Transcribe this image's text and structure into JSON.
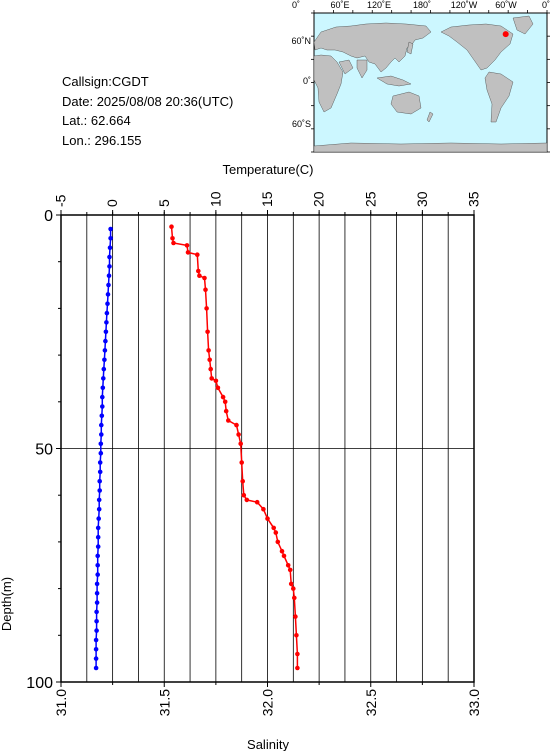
{
  "station": {
    "callsign_line": "Callsign:CGDT",
    "date_label": "Date:",
    "date_value": "2025/08/08 20:36(UTC)",
    "lat_label": "Lat.:",
    "lat_value": "62.664",
    "lon_label": "Lon.:",
    "lon_value": "296.155"
  },
  "map": {
    "lon_tick_labels": [
      "0˚",
      "60˚E",
      "120˚E",
      "180˚",
      "120˚W",
      "60˚W",
      "0˚"
    ],
    "lat_tick_labels": [
      "60˚N",
      "0˚",
      "60˚S"
    ],
    "marker": {
      "lat": 62.664,
      "lon": 296.155
    },
    "colors": {
      "ocean": "#ccf7ff",
      "land": "#c0c0c0",
      "marker": "#ff0000"
    }
  },
  "chart_data": {
    "type": "line",
    "top_axis": {
      "label": "Temperature(C)",
      "range": [
        -5,
        35
      ],
      "ticks": [
        "-5",
        "0",
        "5",
        "10",
        "15",
        "20",
        "25",
        "30",
        "35"
      ]
    },
    "bottom_axis": {
      "label": "Salinity",
      "range": [
        31.0,
        33.0
      ],
      "ticks": [
        "31.0",
        "31.5",
        "32.0",
        "32.5",
        "33.0"
      ]
    },
    "y_axis": {
      "label": "Depth(m)",
      "range": [
        0,
        100
      ],
      "inverted": true,
      "ticks": [
        "0",
        "50",
        "100"
      ]
    },
    "grid": true,
    "series": [
      {
        "color": "#0000ff",
        "x_axis": "temperature",
        "points": [
          [
            -0.2,
            3
          ],
          [
            -0.2,
            5
          ],
          [
            -0.25,
            7
          ],
          [
            -0.3,
            9
          ],
          [
            -0.3,
            11
          ],
          [
            -0.35,
            13
          ],
          [
            -0.4,
            15
          ],
          [
            -0.45,
            17
          ],
          [
            -0.5,
            19
          ],
          [
            -0.55,
            21
          ],
          [
            -0.6,
            23
          ],
          [
            -0.65,
            25
          ],
          [
            -0.7,
            27
          ],
          [
            -0.75,
            29
          ],
          [
            -0.8,
            31
          ],
          [
            -0.85,
            33
          ],
          [
            -0.9,
            35
          ],
          [
            -0.95,
            37
          ],
          [
            -1.0,
            39
          ],
          [
            -1.0,
            41
          ],
          [
            -1.05,
            43
          ],
          [
            -1.1,
            45
          ],
          [
            -1.1,
            47
          ],
          [
            -1.15,
            49
          ],
          [
            -1.15,
            51
          ],
          [
            -1.2,
            53
          ],
          [
            -1.2,
            55
          ],
          [
            -1.25,
            57
          ],
          [
            -1.25,
            59
          ],
          [
            -1.3,
            61
          ],
          [
            -1.3,
            63
          ],
          [
            -1.35,
            65
          ],
          [
            -1.4,
            67
          ],
          [
            -1.4,
            69
          ],
          [
            -1.4,
            71
          ],
          [
            -1.45,
            73
          ],
          [
            -1.45,
            75
          ],
          [
            -1.45,
            77
          ],
          [
            -1.5,
            79
          ],
          [
            -1.5,
            81
          ],
          [
            -1.5,
            83
          ],
          [
            -1.55,
            85
          ],
          [
            -1.55,
            87
          ],
          [
            -1.55,
            89
          ],
          [
            -1.6,
            91
          ],
          [
            -1.6,
            93
          ],
          [
            -1.6,
            95
          ],
          [
            -1.6,
            97
          ]
        ]
      },
      {
        "color": "#ff0000",
        "x_axis": "salinity",
        "points": [
          [
            31.535,
            2.5
          ],
          [
            31.54,
            5
          ],
          [
            31.545,
            6
          ],
          [
            31.61,
            6.5
          ],
          [
            31.615,
            8
          ],
          [
            31.66,
            8.5
          ],
          [
            31.665,
            12
          ],
          [
            31.67,
            13
          ],
          [
            31.695,
            13.5
          ],
          [
            31.7,
            16
          ],
          [
            31.705,
            20
          ],
          [
            31.71,
            25
          ],
          [
            31.715,
            29
          ],
          [
            31.72,
            31
          ],
          [
            31.725,
            33
          ],
          [
            31.73,
            35
          ],
          [
            31.75,
            35.5
          ],
          [
            31.76,
            37
          ],
          [
            31.785,
            39
          ],
          [
            31.795,
            40
          ],
          [
            31.8,
            42
          ],
          [
            31.81,
            44
          ],
          [
            31.85,
            45
          ],
          [
            31.86,
            47
          ],
          [
            31.87,
            49
          ],
          [
            31.875,
            53
          ],
          [
            31.88,
            57
          ],
          [
            31.885,
            60
          ],
          [
            31.9,
            61
          ],
          [
            31.95,
            61.5
          ],
          [
            31.98,
            63
          ],
          [
            32.0,
            65
          ],
          [
            32.03,
            67
          ],
          [
            32.04,
            68
          ],
          [
            32.05,
            70
          ],
          [
            32.07,
            72
          ],
          [
            32.08,
            73
          ],
          [
            32.1,
            75
          ],
          [
            32.11,
            76
          ],
          [
            32.115,
            79
          ],
          [
            32.125,
            80
          ],
          [
            32.13,
            82
          ],
          [
            32.135,
            86
          ],
          [
            32.14,
            90
          ],
          [
            32.145,
            94
          ],
          [
            32.145,
            97
          ]
        ]
      }
    ]
  }
}
